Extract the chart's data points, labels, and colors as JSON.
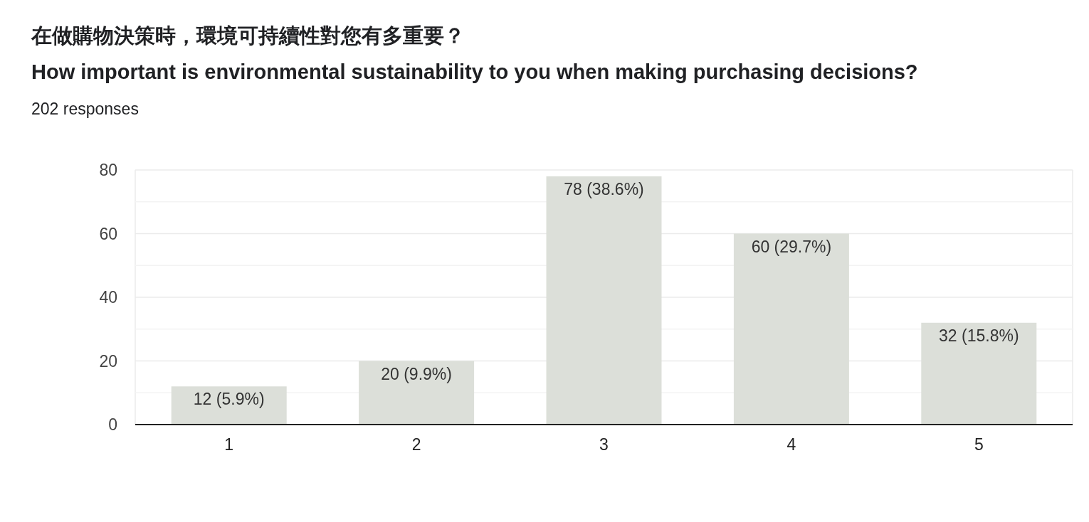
{
  "chart_data": {
    "type": "bar",
    "title": "在做購物決策時，環境可持續性對您有多重要？\nHow important is environmental sustainability to you when making purchasing decisions?",
    "subtitle": "202 responses",
    "categories": [
      "1",
      "2",
      "3",
      "4",
      "5"
    ],
    "values": [
      12,
      20,
      78,
      60,
      32
    ],
    "value_labels": [
      "12 (5.9%)",
      "20 (9.9%)",
      "78 (38.6%)",
      "60 (29.7%)",
      "32 (15.8%)"
    ],
    "color": "#dcdfd9",
    "ylim": [
      0,
      80
    ],
    "yticks": [
      0,
      {
        "value": 10,
        "label": null
      },
      20,
      {
        "value": 30,
        "label": null
      },
      40,
      {
        "value": 50,
        "label": null
      },
      60,
      {
        "value": 70,
        "label": null
      },
      80
    ],
    "grid": "y"
  }
}
